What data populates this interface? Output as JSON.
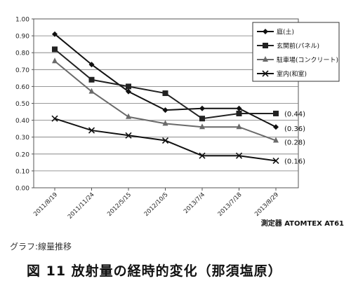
{
  "chart_data": {
    "type": "line",
    "categories": [
      "2011/8/19",
      "2011/11/24",
      "2012/5/15",
      "2012/10/5",
      "2013/7/4",
      "2013/7/18",
      "2013/8/29"
    ],
    "ylim": [
      0,
      1.0
    ],
    "yticks": [
      "0.00",
      "0.10",
      "0.20",
      "0.30",
      "0.40",
      "0.50",
      "0.60",
      "0.70",
      "0.80",
      "0.90",
      "1.00"
    ],
    "grid": true,
    "legend_position": "top-right",
    "series": [
      {
        "name": "庭(土)",
        "marker": "diamond",
        "values": [
          0.91,
          0.73,
          0.57,
          0.46,
          0.47,
          0.47,
          0.36
        ],
        "end_label": "(0.36)"
      },
      {
        "name": "玄関前(パネル)",
        "marker": "square",
        "values": [
          0.82,
          0.64,
          0.6,
          0.56,
          0.41,
          0.44,
          0.44
        ],
        "end_label": "(0.44)"
      },
      {
        "name": "駐車場(コンクリート)",
        "marker": "triangle",
        "values": [
          0.75,
          0.57,
          0.42,
          0.38,
          0.36,
          0.36,
          0.28
        ],
        "end_label": "(0.28)"
      },
      {
        "name": "室内(和室)",
        "marker": "x",
        "values": [
          0.41,
          0.34,
          0.31,
          0.28,
          0.19,
          0.19,
          0.16
        ],
        "end_label": "(0.16)"
      }
    ],
    "note": "測定器 ATOMTEX AT61"
  },
  "captions": {
    "small": "グラフ:線量推移",
    "figure": "図 11 放射量の経時的変化（那須塩原）"
  }
}
